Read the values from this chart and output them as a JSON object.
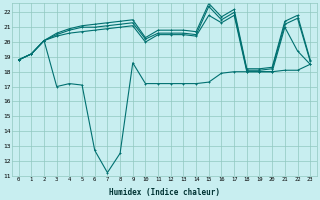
{
  "xlabel": "Humidex (Indice chaleur)",
  "xlim": [
    -0.5,
    23.5
  ],
  "ylim": [
    11,
    22.6
  ],
  "yticks": [
    11,
    12,
    13,
    14,
    15,
    16,
    17,
    18,
    19,
    20,
    21,
    22
  ],
  "xticks": [
    0,
    1,
    2,
    3,
    4,
    5,
    6,
    7,
    8,
    9,
    10,
    11,
    12,
    13,
    14,
    15,
    16,
    17,
    18,
    19,
    20,
    21,
    22,
    23
  ],
  "bg_color": "#c8eef0",
  "grid_color": "#90c8c0",
  "line_color": "#007070",
  "s1_x": [
    0,
    1,
    2,
    3,
    4,
    5,
    6,
    7,
    8,
    9,
    10,
    11,
    12,
    13,
    14,
    15,
    16,
    17,
    18,
    19,
    20,
    21,
    22,
    23
  ],
  "s1_y": [
    18.8,
    19.2,
    20.1,
    20.4,
    20.6,
    20.7,
    20.8,
    20.9,
    21.0,
    21.1,
    20.0,
    20.5,
    20.5,
    20.5,
    20.4,
    21.8,
    21.3,
    21.8,
    18.0,
    18.0,
    18.0,
    21.0,
    19.4,
    18.5
  ],
  "s2_x": [
    0,
    1,
    2,
    3,
    4,
    5,
    6,
    7,
    8,
    9,
    10,
    11,
    12,
    13,
    14,
    15,
    16,
    17,
    18,
    19,
    20,
    21,
    22,
    23
  ],
  "s2_y": [
    18.8,
    19.2,
    20.1,
    20.6,
    20.9,
    21.1,
    21.2,
    21.3,
    21.4,
    21.5,
    20.3,
    20.8,
    20.8,
    20.8,
    20.7,
    22.6,
    21.7,
    22.2,
    18.2,
    18.2,
    18.3,
    21.4,
    21.8,
    18.8
  ],
  "s3_x": [
    0,
    1,
    2,
    3,
    4,
    5,
    6,
    7,
    8,
    9,
    10,
    11,
    12,
    13,
    14,
    15,
    16,
    17,
    18,
    19,
    20,
    21,
    22,
    23
  ],
  "s3_y": [
    18.8,
    19.2,
    20.1,
    20.5,
    20.8,
    21.0,
    21.0,
    21.1,
    21.2,
    21.3,
    20.2,
    20.6,
    20.6,
    20.6,
    20.5,
    22.4,
    21.5,
    22.0,
    18.1,
    18.1,
    18.2,
    21.2,
    21.6,
    18.7
  ],
  "s4_x": [
    0,
    1,
    2,
    3,
    4,
    5,
    6,
    7,
    8,
    9,
    10,
    11,
    12,
    13,
    14,
    15,
    16,
    17,
    18,
    19,
    20,
    21,
    22,
    23
  ],
  "s4_y": [
    18.8,
    19.2,
    20.1,
    17.0,
    17.2,
    17.1,
    12.7,
    11.2,
    12.5,
    18.6,
    17.2,
    17.2,
    17.2,
    17.2,
    17.2,
    17.3,
    17.9,
    18.0,
    18.0,
    18.0,
    18.0,
    18.1,
    18.1,
    18.5
  ],
  "figsize": [
    3.2,
    2.0
  ],
  "dpi": 100
}
